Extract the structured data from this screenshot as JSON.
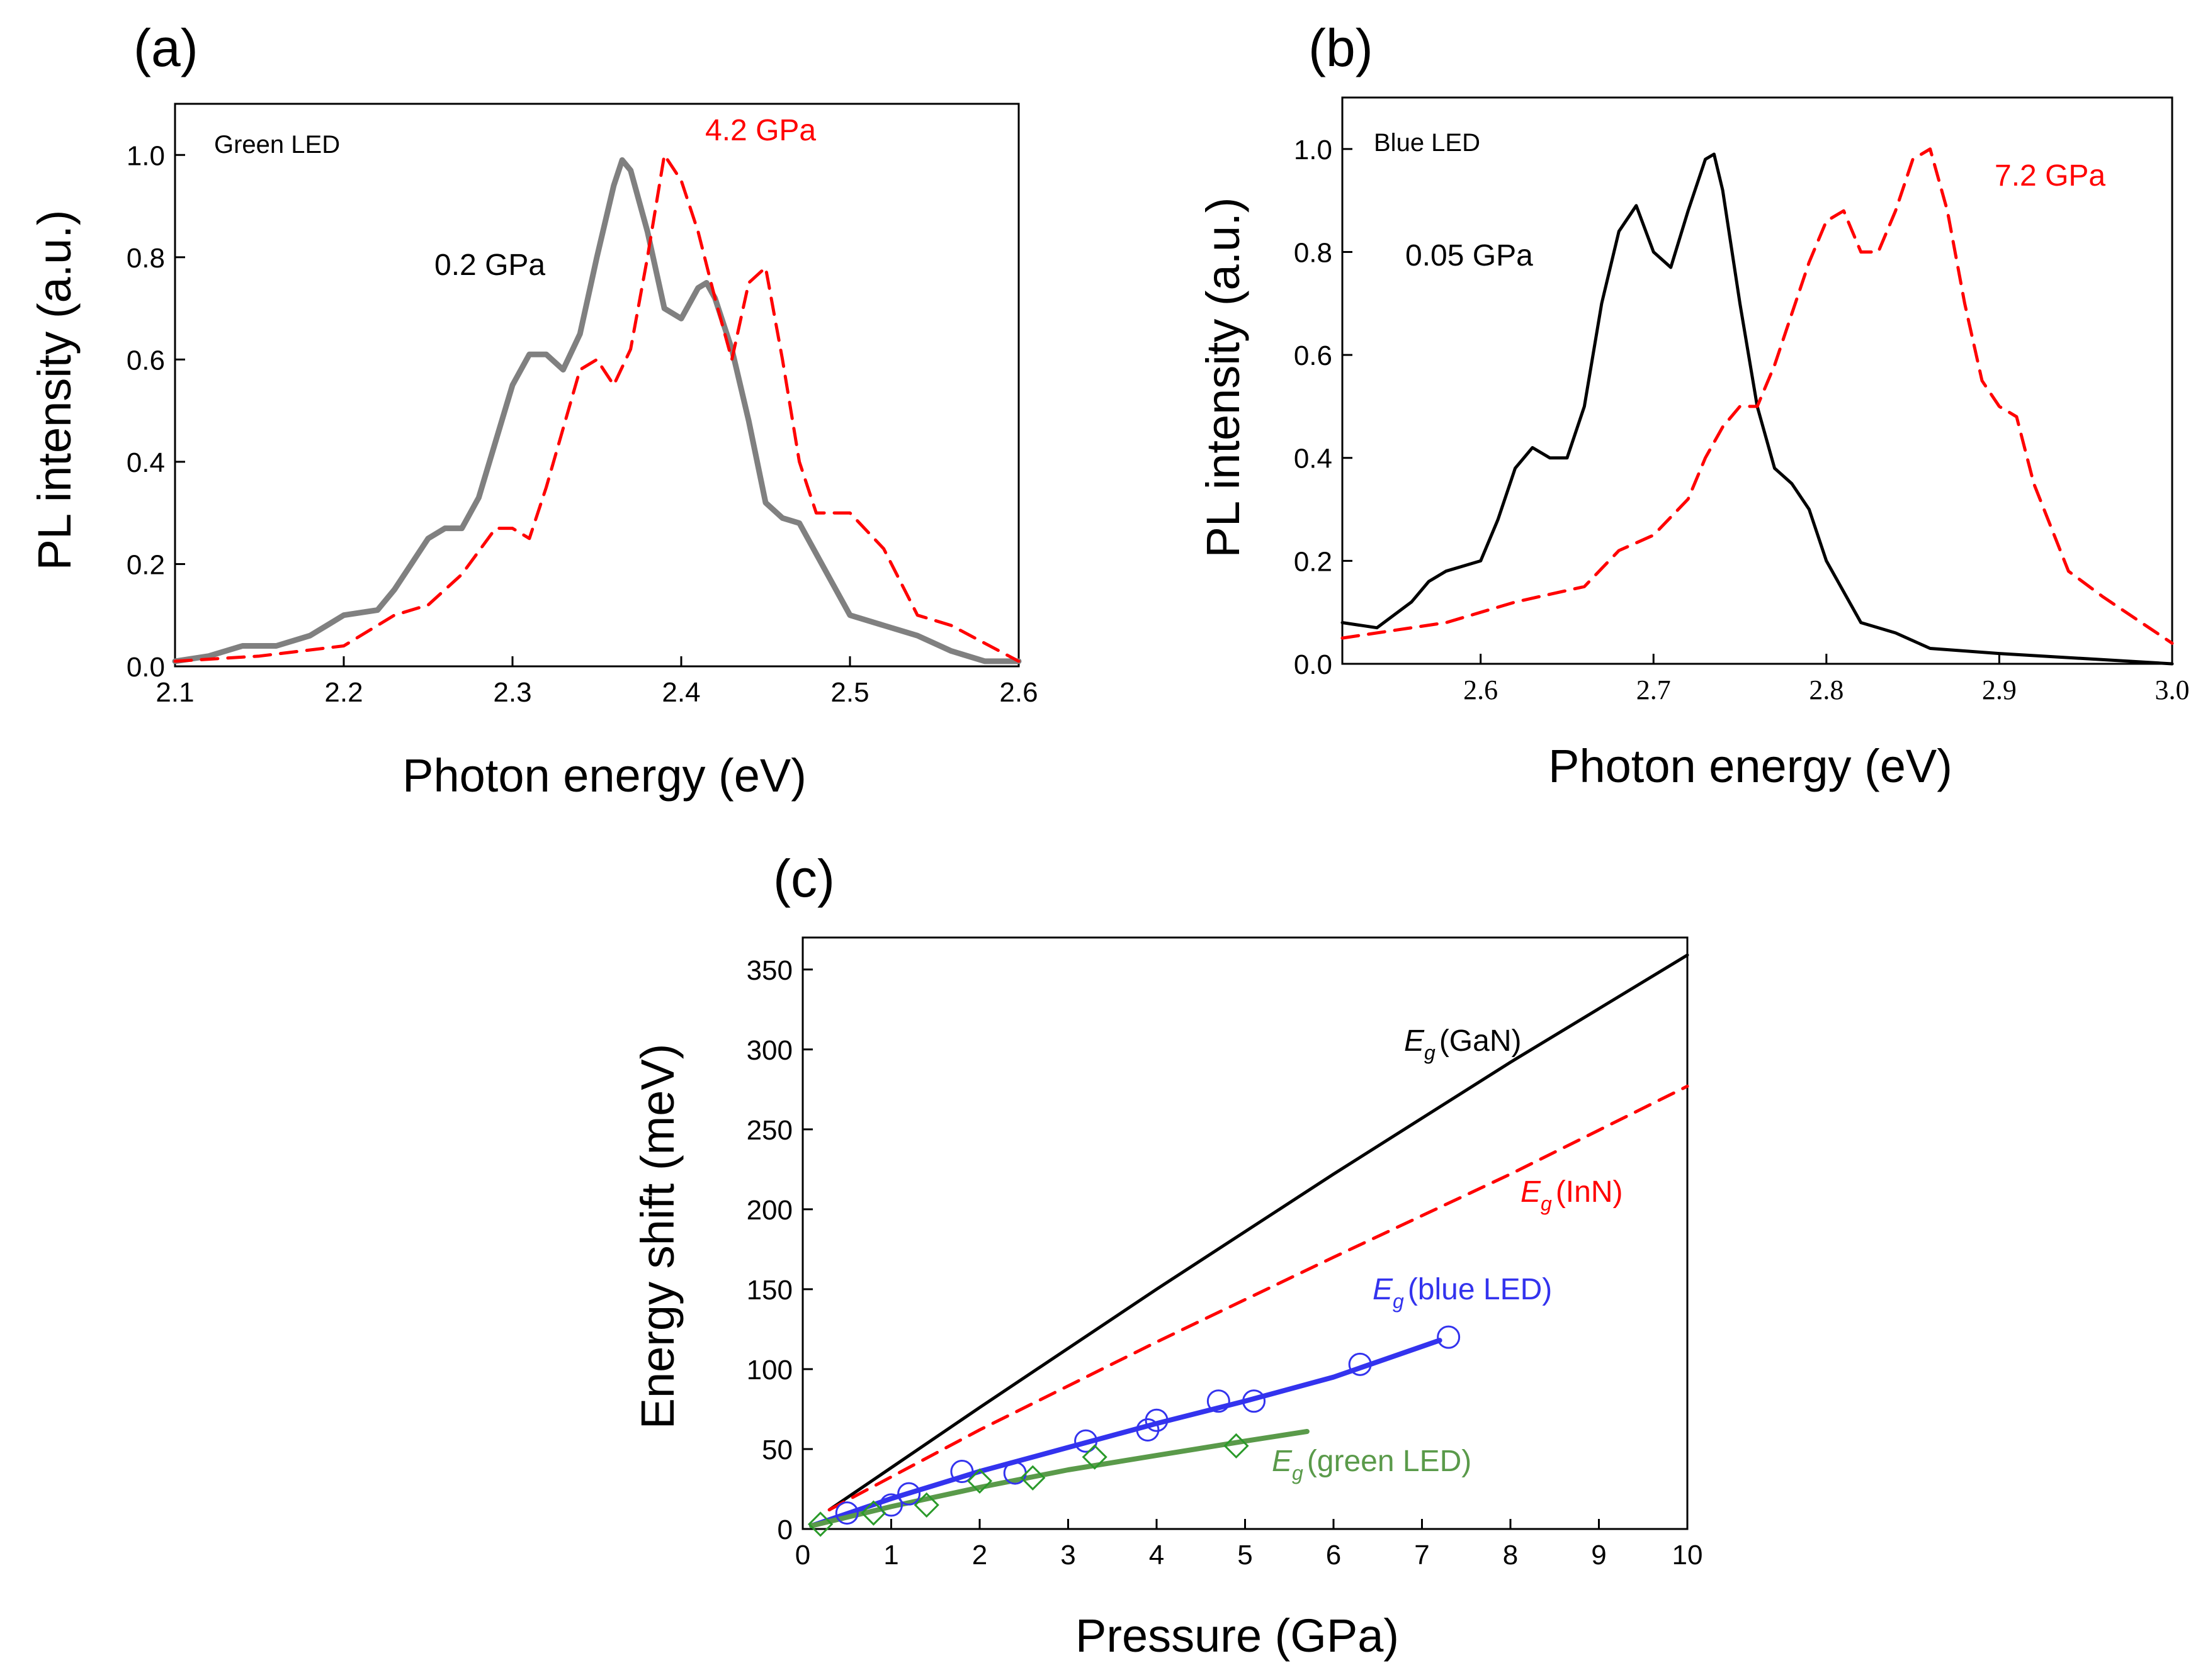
{
  "chart_data": [
    {
      "id": "a",
      "type": "line",
      "panel_label": "(a)",
      "legend_text": "Green LED",
      "xlabel": "Photon energy (eV)",
      "ylabel": "PL intensity (a.u.)",
      "xlim": [
        2.1,
        2.6
      ],
      "ylim": [
        0.0,
        1.1
      ],
      "xticks": [
        "2.1",
        "2.2",
        "2.3",
        "2.4",
        "2.5",
        "2.6"
      ],
      "yticks": [
        "0.0",
        "0.2",
        "0.4",
        "0.6",
        "0.8",
        "1.0"
      ],
      "xtick_values": [
        2.1,
        2.2,
        2.3,
        2.4,
        2.5,
        2.6
      ],
      "ytick_values": [
        0.0,
        0.2,
        0.4,
        0.6,
        0.8,
        1.0
      ],
      "series": [
        {
          "name": "0.2 GPa",
          "label": "0.2 GPa",
          "color": "#808080",
          "dash": "solid",
          "x": [
            2.1,
            2.12,
            2.14,
            2.16,
            2.18,
            2.19,
            2.2,
            2.22,
            2.23,
            2.24,
            2.25,
            2.26,
            2.27,
            2.28,
            2.29,
            2.3,
            2.31,
            2.32,
            2.33,
            2.34,
            2.35,
            2.36,
            2.365,
            2.37,
            2.38,
            2.39,
            2.4,
            2.41,
            2.415,
            2.42,
            2.43,
            2.44,
            2.45,
            2.46,
            2.47,
            2.48,
            2.49,
            2.5,
            2.52,
            2.54,
            2.56,
            2.58,
            2.6
          ],
          "y": [
            0.01,
            0.02,
            0.04,
            0.04,
            0.06,
            0.08,
            0.1,
            0.11,
            0.15,
            0.2,
            0.25,
            0.27,
            0.27,
            0.33,
            0.44,
            0.55,
            0.61,
            0.61,
            0.58,
            0.65,
            0.8,
            0.94,
            0.99,
            0.97,
            0.85,
            0.7,
            0.68,
            0.74,
            0.75,
            0.72,
            0.62,
            0.48,
            0.32,
            0.29,
            0.28,
            0.22,
            0.16,
            0.1,
            0.08,
            0.06,
            0.03,
            0.01,
            0.01
          ]
        },
        {
          "name": "4.2 GPa",
          "label": "4.2 GPa",
          "color": "#ff0000",
          "dash": "dashed",
          "x": [
            2.1,
            2.15,
            2.2,
            2.23,
            2.25,
            2.27,
            2.29,
            2.3,
            2.31,
            2.32,
            2.34,
            2.35,
            2.36,
            2.37,
            2.38,
            2.39,
            2.4,
            2.41,
            2.42,
            2.43,
            2.44,
            2.45,
            2.46,
            2.47,
            2.48,
            2.5,
            2.52,
            2.54,
            2.56,
            2.6
          ],
          "y": [
            0.01,
            0.02,
            0.04,
            0.1,
            0.12,
            0.18,
            0.27,
            0.27,
            0.25,
            0.35,
            0.58,
            0.6,
            0.55,
            0.62,
            0.8,
            1.0,
            0.95,
            0.85,
            0.72,
            0.6,
            0.75,
            0.78,
            0.6,
            0.4,
            0.3,
            0.3,
            0.23,
            0.1,
            0.08,
            0.01
          ]
        }
      ]
    },
    {
      "id": "b",
      "type": "line",
      "panel_label": "(b)",
      "legend_text": "Blue LED",
      "xlabel": "Photon energy (eV)",
      "ylabel": "PL intensity (a.u.)",
      "xlim": [
        2.52,
        3.0
      ],
      "ylim": [
        0.0,
        1.1
      ],
      "xticks": [
        "2.6",
        "2.7",
        "2.8",
        "2.9",
        "3.0"
      ],
      "yticks": [
        "0.0",
        "0.2",
        "0.4",
        "0.6",
        "0.8",
        "1.0"
      ],
      "xtick_values": [
        2.6,
        2.7,
        2.8,
        2.9,
        3.0
      ],
      "ytick_values": [
        0.0,
        0.2,
        0.4,
        0.6,
        0.8,
        1.0
      ],
      "series": [
        {
          "name": "0.05 GPa",
          "label": "0.05 GPa",
          "color": "#000000",
          "dash": "solid",
          "x": [
            2.52,
            2.54,
            2.56,
            2.57,
            2.58,
            2.6,
            2.61,
            2.62,
            2.63,
            2.64,
            2.65,
            2.66,
            2.67,
            2.68,
            2.69,
            2.7,
            2.71,
            2.72,
            2.73,
            2.735,
            2.74,
            2.75,
            2.76,
            2.77,
            2.78,
            2.79,
            2.8,
            2.82,
            2.84,
            2.86,
            2.9,
            2.95,
            3.0
          ],
          "y": [
            0.08,
            0.07,
            0.12,
            0.16,
            0.18,
            0.2,
            0.28,
            0.38,
            0.42,
            0.4,
            0.4,
            0.5,
            0.7,
            0.84,
            0.89,
            0.8,
            0.77,
            0.88,
            0.98,
            0.99,
            0.92,
            0.7,
            0.5,
            0.38,
            0.35,
            0.3,
            0.2,
            0.08,
            0.06,
            0.03,
            0.02,
            0.01,
            0.0
          ]
        },
        {
          "name": "7.2 GPa",
          "label": "7.2 GPa",
          "color": "#ff0000",
          "dash": "dashed",
          "x": [
            2.52,
            2.58,
            2.62,
            2.66,
            2.68,
            2.7,
            2.72,
            2.73,
            2.74,
            2.75,
            2.76,
            2.77,
            2.78,
            2.79,
            2.8,
            2.81,
            2.82,
            2.83,
            2.84,
            2.85,
            2.86,
            2.87,
            2.88,
            2.89,
            2.9,
            2.91,
            2.92,
            2.94,
            2.96,
            3.0
          ],
          "y": [
            0.05,
            0.08,
            0.12,
            0.15,
            0.22,
            0.25,
            0.32,
            0.4,
            0.46,
            0.5,
            0.5,
            0.58,
            0.68,
            0.78,
            0.86,
            0.88,
            0.8,
            0.8,
            0.88,
            0.98,
            1.0,
            0.88,
            0.7,
            0.55,
            0.5,
            0.48,
            0.35,
            0.18,
            0.13,
            0.04
          ]
        }
      ]
    },
    {
      "id": "c",
      "type": "line",
      "panel_label": "(c)",
      "xlabel": "Pressure (GPa)",
      "ylabel": "Energy shift (meV)",
      "xlim": [
        0,
        10
      ],
      "ylim": [
        0,
        370
      ],
      "xticks": [
        "0",
        "1",
        "2",
        "3",
        "4",
        "5",
        "6",
        "7",
        "8",
        "9",
        "10"
      ],
      "yticks": [
        "0",
        "50",
        "100",
        "150",
        "200",
        "250",
        "300",
        "350"
      ],
      "xtick_values": [
        0,
        1,
        2,
        3,
        4,
        5,
        6,
        7,
        8,
        9,
        10
      ],
      "ytick_values": [
        0,
        50,
        100,
        150,
        200,
        250,
        300,
        350
      ],
      "series": [
        {
          "name": "E_g (GaN)",
          "label_main": "E",
          "label_sub": "g",
          "label_rest": "(GaN)",
          "color": "#000000",
          "dash": "solid",
          "x": [
            0.3,
            2,
            4,
            6,
            8,
            10
          ],
          "y": [
            12,
            76,
            150,
            222,
            292,
            359
          ]
        },
        {
          "name": "E_g (InN)",
          "label_main": "E",
          "label_sub": "g",
          "label_rest": "(InN)",
          "color": "#ff0000",
          "dash": "dashed",
          "x": [
            0.3,
            2,
            4,
            6,
            8,
            10
          ],
          "y": [
            12,
            62,
            117,
            170,
            222,
            277
          ]
        },
        {
          "name": "E_g (blue LED)",
          "label_main": "E",
          "label_sub": "g",
          "label_rest": "(blue LED)",
          "color": "#3333ee",
          "dash": "solid",
          "x": [
            0.1,
            1,
            2,
            3,
            4,
            5,
            6,
            7.2
          ],
          "y": [
            2,
            19,
            36,
            51,
            66,
            80,
            95,
            118
          ]
        },
        {
          "name": "E_g (green LED)",
          "label_main": "E",
          "label_sub": "g",
          "label_rest": "(green LED)",
          "color": "#5a9a4a",
          "dash": "solid",
          "x": [
            0.1,
            1,
            2,
            3,
            4,
            5,
            5.7
          ],
          "y": [
            2,
            14,
            26,
            37,
            46,
            55,
            61
          ]
        }
      ],
      "points": [
        {
          "name": "blue LED data",
          "marker": "circle",
          "color": "#3333ee",
          "x": [
            0.5,
            1.0,
            1.2,
            1.8,
            2.4,
            3.2,
            3.9,
            4.0,
            4.7,
            5.1,
            6.3,
            7.3
          ],
          "y": [
            10,
            15,
            22,
            36,
            35,
            55,
            62,
            68,
            80,
            80,
            103,
            120
          ]
        },
        {
          "name": "green LED data",
          "marker": "diamond",
          "color": "#2a9a2a",
          "x": [
            0.2,
            0.8,
            1.4,
            2.0,
            2.6,
            3.3,
            4.9
          ],
          "y": [
            3,
            10,
            15,
            30,
            32,
            45,
            52
          ]
        }
      ]
    }
  ]
}
